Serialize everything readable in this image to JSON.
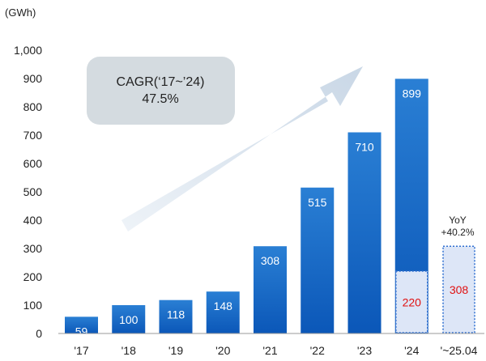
{
  "chart_data": {
    "type": "bar",
    "unit_label": "(GWh)",
    "categories": [
      "'17",
      "'18",
      "'19",
      "'20",
      "'21",
      "'22",
      "'23",
      "'24",
      "'~25.04"
    ],
    "values": [
      59,
      100,
      118,
      148,
      308,
      515,
      710,
      899,
      null
    ],
    "ylim": [
      0,
      1000
    ],
    "yticks": [
      "0",
      "100",
      "200",
      "300",
      "400",
      "500",
      "600",
      "700",
      "800",
      "900",
      "1,000"
    ],
    "partial_values": [
      {
        "category": "'24",
        "value": 220
      },
      {
        "category": "'~25.04",
        "value": 308
      }
    ],
    "annotations": {
      "cagr_line1": "CAGR(‘17~’24)",
      "cagr_line2": "47.5%",
      "yoy_line1": "YoY",
      "yoy_line2": "+40.2%"
    },
    "grid": false,
    "legend": "none",
    "colors": {
      "bar_top": "#2a7fd4",
      "bar_bottom": "#0b57b8",
      "partial_fill": "#dde6f7",
      "partial_border": "#2f6fd1",
      "partial_text": "#e01010",
      "arrow": "#d6e2ee",
      "cagr_box": "#d4dbe0"
    }
  }
}
